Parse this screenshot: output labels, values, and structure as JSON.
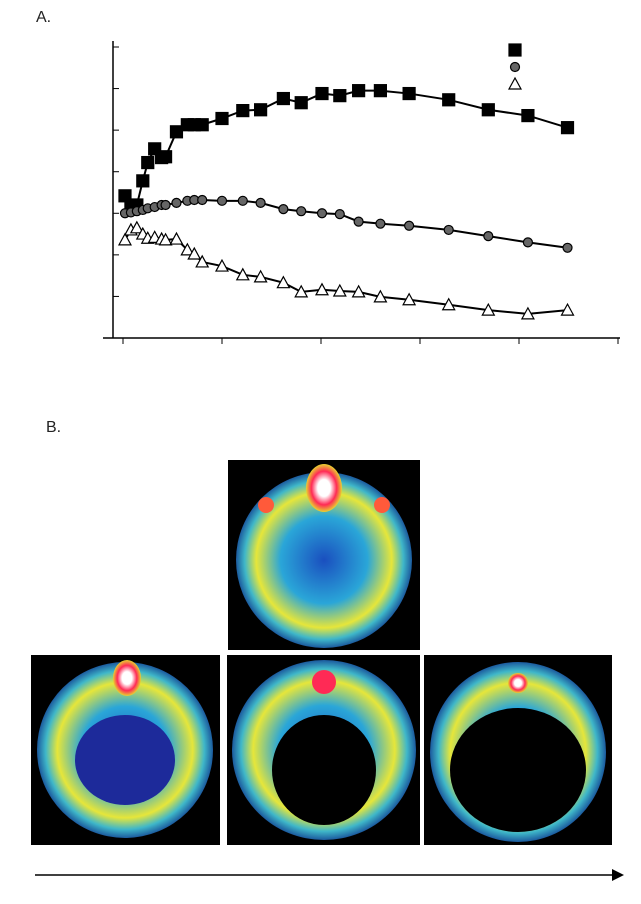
{
  "panel_labels": [
    "A.",
    "B."
  ],
  "chart_data": {
    "type": "line",
    "x": [
      0.02,
      0.08,
      0.14,
      0.2,
      0.25,
      0.32,
      0.39,
      0.43,
      0.54,
      0.65,
      0.72,
      0.8,
      1.0,
      1.21,
      1.39,
      1.62,
      1.8,
      2.01,
      2.19,
      2.38,
      2.6,
      2.89,
      3.29,
      3.69,
      4.09,
      4.49
    ],
    "xlim": [
      0,
      5
    ],
    "xticks": [
      0,
      1,
      2,
      3,
      4,
      5
    ],
    "ylim": [
      0,
      7
    ],
    "yticks": [
      1,
      2,
      3,
      4,
      5,
      6,
      7
    ],
    "series": [
      {
        "marker": "square",
        "color": "#000000",
        "values": [
          3.42,
          3.18,
          3.2,
          3.78,
          4.22,
          4.55,
          4.34,
          4.36,
          4.96,
          5.13,
          5.13,
          5.13,
          5.28,
          5.47,
          5.49,
          5.76,
          5.66,
          5.88,
          5.83,
          5.95,
          5.95,
          5.88,
          5.73,
          5.49,
          5.35,
          5.06
        ]
      },
      {
        "marker": "circle",
        "color": "#666666",
        "values": [
          3.0,
          3.02,
          3.05,
          3.08,
          3.12,
          3.15,
          3.2,
          3.2,
          3.25,
          3.3,
          3.32,
          3.32,
          3.3,
          3.3,
          3.25,
          3.1,
          3.05,
          3.0,
          2.98,
          2.8,
          2.75,
          2.7,
          2.6,
          2.45,
          2.3,
          2.17
        ]
      },
      {
        "marker": "triangle",
        "color": "#ffffff",
        "values": [
          2.36,
          2.6,
          2.65,
          2.5,
          2.4,
          2.42,
          2.38,
          2.36,
          2.38,
          2.12,
          2.02,
          1.83,
          1.73,
          1.52,
          1.47,
          1.33,
          1.11,
          1.16,
          1.13,
          1.11,
          0.99,
          0.92,
          0.8,
          0.67,
          0.58,
          0.67
        ]
      }
    ]
  }
}
